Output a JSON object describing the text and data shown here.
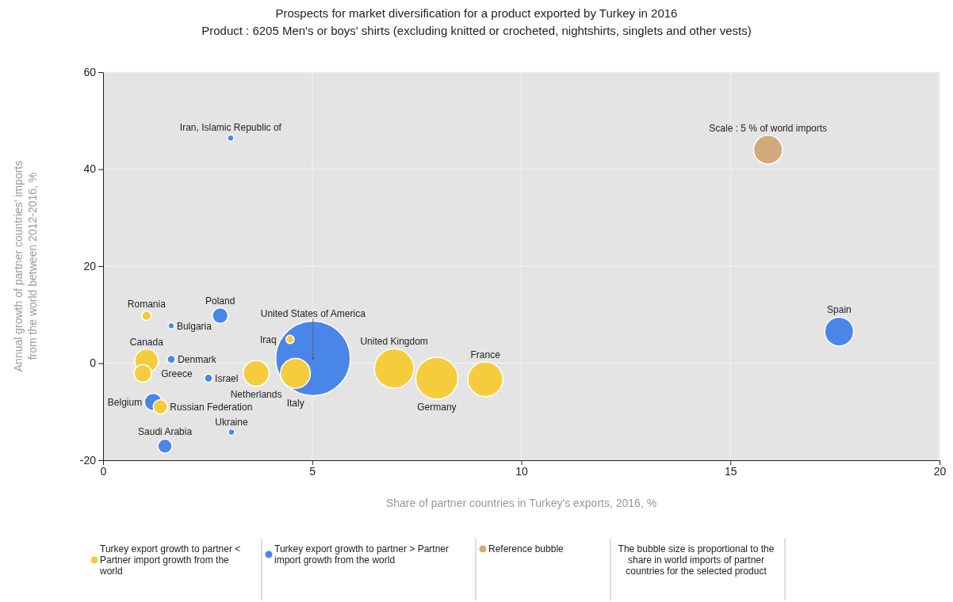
{
  "chart_data": {
    "type": "bubble",
    "title": "Prospects for market diversification for a product exported by Turkey in 2016",
    "subtitle": "Product : 6205 Men's or boys' shirts (excluding knitted or crocheted, nightshirts, singlets and other vests)",
    "xlabel": "Share of partner countries in Turkey's exports, 2016, %",
    "ylabel": "Annual growth of partner countries' imports from the world between 2012-2016, %",
    "xlim": [
      0,
      20
    ],
    "ylim": [
      -20,
      60
    ],
    "xticks": [
      0,
      5,
      10,
      15,
      20
    ],
    "yticks": [
      -20,
      0,
      20,
      40,
      60
    ],
    "grid": true,
    "legend": "bottom",
    "marker": "circle",
    "series": [
      {
        "name": "Turkey export growth to partner < Partner import growth from the world",
        "color": "#f5cd3c",
        "x": [
          1.04,
          1.04,
          0.95,
          3.66,
          4.6,
          4.47,
          1.37,
          6.96,
          7.98,
          9.14
        ],
        "values": [
          9.8,
          0.5,
          -2.1,
          -2.1,
          -2.1,
          4.9,
          -9,
          -1.1,
          -3.1,
          -3.3
        ],
        "sizes": [
          0.016,
          0.1,
          0.056,
          0.12,
          0.16,
          0.012,
          0.037,
          0.28,
          0.32,
          0.22
        ]
      },
      {
        "name": "Turkey export growth to partner > Partner import growth from the world",
        "color": "#4a86e8",
        "x": [
          3.05,
          1.63,
          2.8,
          1.63,
          2.52,
          5.02,
          1.2,
          1.48,
          3.07,
          17.6
        ],
        "values": [
          46.4,
          7.7,
          9.8,
          0.8,
          -3.1,
          1,
          -8,
          -17.1,
          -14.2,
          6.5
        ],
        "sizes": [
          0.007,
          0.007,
          0.044,
          0.012,
          0.012,
          1,
          0.056,
          0.037,
          0.007,
          0.15
        ]
      },
      {
        "name": "Reference bubble",
        "color": "#d2a97a",
        "x": [
          15.9
        ],
        "values": [
          44
        ],
        "sizes": [
          0.15
        ]
      }
    ],
    "annotations": [
      {
        "text": "Iran, Islamic Republic of",
        "x": 3.05,
        "y": 46.4
      },
      {
        "text": "Scale : 5 % of world imports",
        "x": 15.9,
        "y": 44
      },
      {
        "text": "Spain",
        "x": 17.6,
        "y": 6.5
      },
      {
        "text": "Romania",
        "x": 1.04,
        "y": 9.8
      },
      {
        "text": "Bulgaria",
        "x": 1.63,
        "y": 7.7
      },
      {
        "text": "Poland",
        "x": 2.8,
        "y": 9.8
      },
      {
        "text": "United States of America",
        "x": 5.02,
        "y": 1
      },
      {
        "text": "Iraq",
        "x": 4.47,
        "y": 4.9
      },
      {
        "text": "Greece",
        "x": 0.95,
        "y": -2.1
      },
      {
        "text": "Canada",
        "x": 1.04,
        "y": 0.5
      },
      {
        "text": "Denmark",
        "x": 1.63,
        "y": 0.8
      },
      {
        "text": "Israel",
        "x": 2.52,
        "y": -3.1
      },
      {
        "text": "Italy",
        "x": 4.6,
        "y": -2.1
      },
      {
        "text": "Netherlands",
        "x": 3.66,
        "y": -2.1
      },
      {
        "text": "United Kingdom",
        "x": 6.96,
        "y": -1.1
      },
      {
        "text": "France",
        "x": 9.14,
        "y": -3.3
      },
      {
        "text": "Germany",
        "x": 7.98,
        "y": -3.1
      },
      {
        "text": "Belgium",
        "x": 1.2,
        "y": -8
      },
      {
        "text": "Saudi Arabia",
        "x": 1.48,
        "y": -17.1
      },
      {
        "text": "Ukraine",
        "x": 3.07,
        "y": -14.2
      },
      {
        "text": "Russian Federation",
        "x": 1.37,
        "y": -9
      },
      "The bubble size is proportional to the share in world imports of partner countries for the selected product"
    ]
  }
}
